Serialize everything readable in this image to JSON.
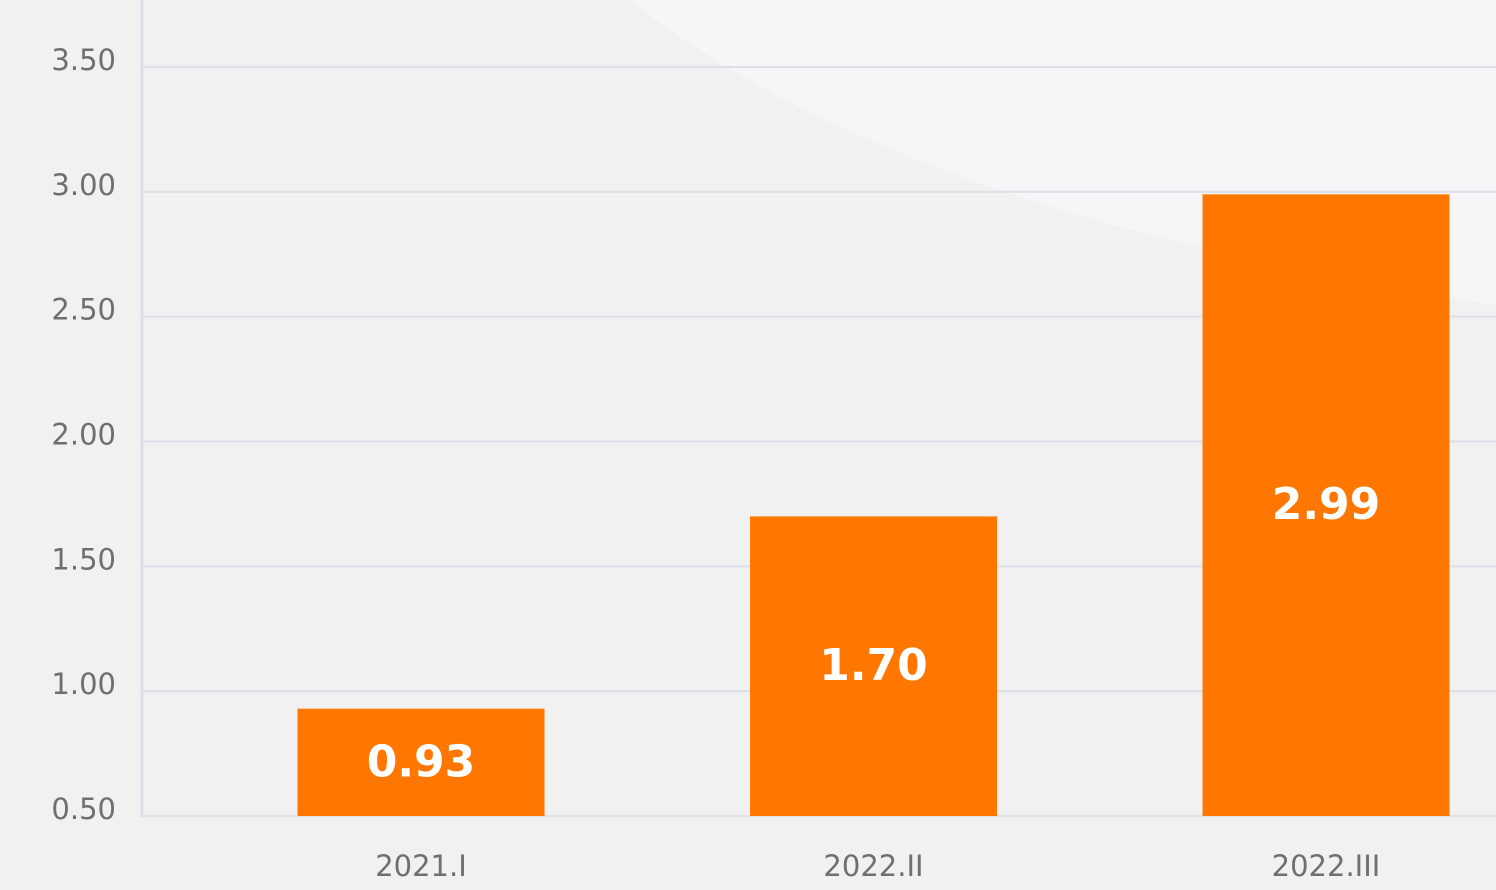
{
  "chart_data": {
    "type": "bar",
    "categories": [
      "2021.I",
      "2022.II",
      "2022.III"
    ],
    "values": [
      0.93,
      1.7,
      2.99
    ],
    "value_labels": [
      "0.93",
      "1.70",
      "2.99"
    ],
    "color": "#ff7700",
    "ylim": [
      0.5,
      3.5
    ],
    "yticks": [
      {
        "value": 0.5,
        "label": "0.50"
      },
      {
        "value": 1,
        "label": "1.00"
      },
      {
        "value": 1.5,
        "label": "1.50"
      },
      {
        "value": 2,
        "label": "2.00"
      },
      {
        "value": 2.5,
        "label": "2.50"
      },
      {
        "value": 3,
        "label": "3.00"
      },
      {
        "value": 3.5,
        "label": "3.50"
      }
    ],
    "grid": true
  }
}
